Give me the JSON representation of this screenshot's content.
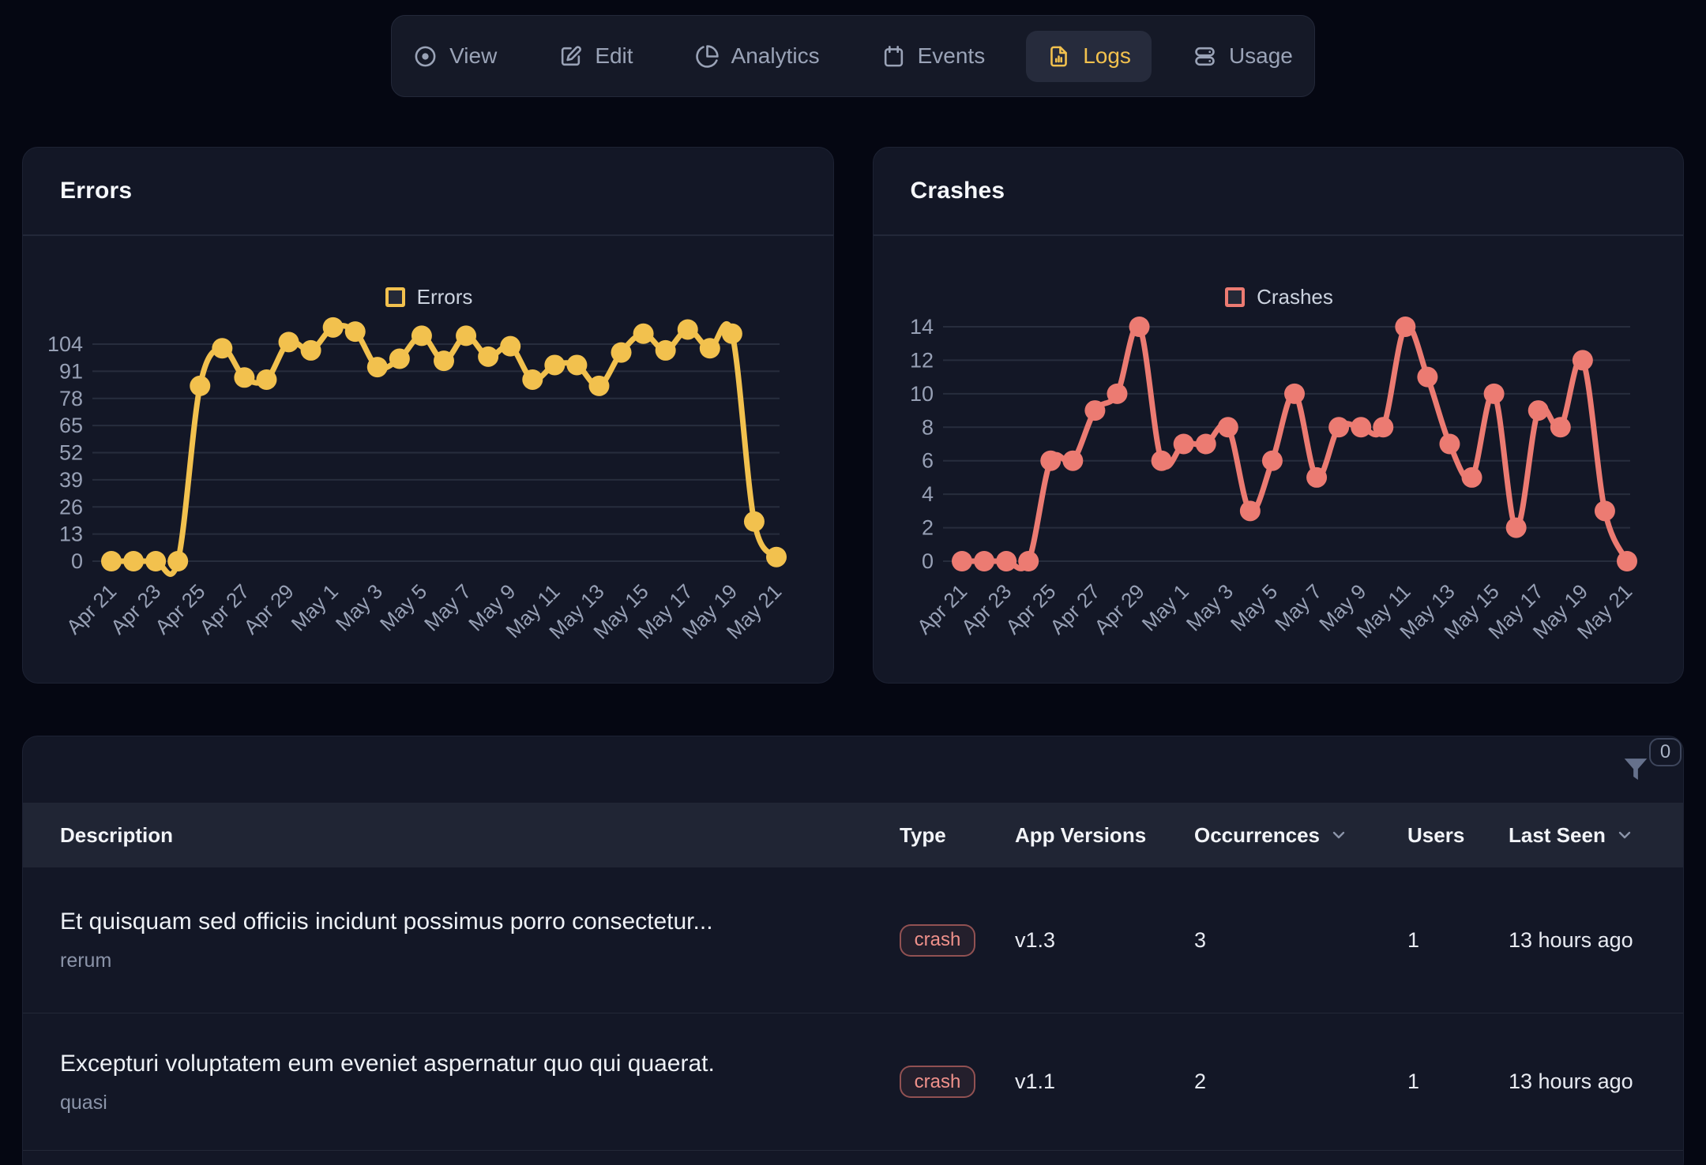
{
  "colors": {
    "background": "#050712",
    "card": "#131726",
    "accent_yellow": "#f2c14e",
    "accent_salmon": "#ec7b72",
    "text_secondary": "#97a0b5"
  },
  "nav": {
    "tabs": [
      {
        "label": "View",
        "icon": "eye-icon",
        "active": false
      },
      {
        "label": "Edit",
        "icon": "edit-icon",
        "active": false
      },
      {
        "label": "Analytics",
        "icon": "pie-chart-icon",
        "active": false
      },
      {
        "label": "Events",
        "icon": "calendar-icon",
        "active": false
      },
      {
        "label": "Logs",
        "icon": "file-chart-icon",
        "active": true
      },
      {
        "label": "Usage",
        "icon": "server-icon",
        "active": false
      }
    ]
  },
  "chart_data": [
    {
      "type": "line",
      "title": "Errors",
      "series_label": "Errors",
      "color": "#f2c14e",
      "legend_position": "top-center",
      "grid": "horizontal",
      "yticks": [
        0,
        13,
        26,
        39,
        52,
        65,
        78,
        91,
        104
      ],
      "xtick_every": 2,
      "x": [
        "Apr 21",
        "Apr 22",
        "Apr 23",
        "Apr 24",
        "Apr 25",
        "Apr 26",
        "Apr 27",
        "Apr 28",
        "Apr 29",
        "Apr 30",
        "May 1",
        "May 2",
        "May 3",
        "May 4",
        "May 5",
        "May 6",
        "May 7",
        "May 8",
        "May 9",
        "May 10",
        "May 11",
        "May 12",
        "May 13",
        "May 14",
        "May 15",
        "May 16",
        "May 17",
        "May 18",
        "May 19",
        "May 20",
        "May 21"
      ],
      "values": [
        0,
        0,
        0,
        0,
        84,
        102,
        88,
        87,
        105,
        101,
        112,
        110,
        93,
        97,
        108,
        96,
        108,
        98,
        103,
        87,
        94,
        94,
        84,
        100,
        109,
        101,
        111,
        102,
        109,
        19,
        2
      ]
    },
    {
      "type": "line",
      "title": "Crashes",
      "series_label": "Crashes",
      "color": "#ec7b72",
      "legend_position": "top-center",
      "grid": "horizontal",
      "yticks": [
        0,
        2,
        4,
        6,
        8,
        10,
        12,
        14
      ],
      "xtick_every": 2,
      "x": [
        "Apr 21",
        "Apr 22",
        "Apr 23",
        "Apr 24",
        "Apr 25",
        "Apr 26",
        "Apr 27",
        "Apr 28",
        "Apr 29",
        "Apr 30",
        "May 1",
        "May 2",
        "May 3",
        "May 4",
        "May 5",
        "May 6",
        "May 7",
        "May 8",
        "May 9",
        "May 10",
        "May 11",
        "May 12",
        "May 13",
        "May 14",
        "May 15",
        "May 16",
        "May 17",
        "May 18",
        "May 19",
        "May 20",
        "May 21"
      ],
      "values": [
        0,
        0,
        0,
        0,
        6,
        6,
        9,
        10,
        14,
        6,
        7,
        7,
        8,
        3,
        6,
        10,
        5,
        8,
        8,
        8,
        14,
        11,
        7,
        5,
        10,
        2,
        9,
        8,
        12,
        3,
        0
      ]
    }
  ],
  "table": {
    "filter_count": "0",
    "columns": [
      "Description",
      "Type",
      "App Versions",
      "Occurrences",
      "Users",
      "Last Seen"
    ],
    "rows": [
      {
        "title": "Et quisquam sed officiis incidunt possimus porro consectetur...",
        "subtitle": "rerum",
        "type": "crash",
        "app_version": "v1.3",
        "occurrences": "3",
        "users": "1",
        "last_seen": "13 hours ago"
      },
      {
        "title": "Excepturi voluptatem eum eveniet aspernatur quo qui quaerat.",
        "subtitle": "quasi",
        "type": "crash",
        "app_version": "v1.1",
        "occurrences": "2",
        "users": "1",
        "last_seen": "13 hours ago"
      }
    ]
  }
}
